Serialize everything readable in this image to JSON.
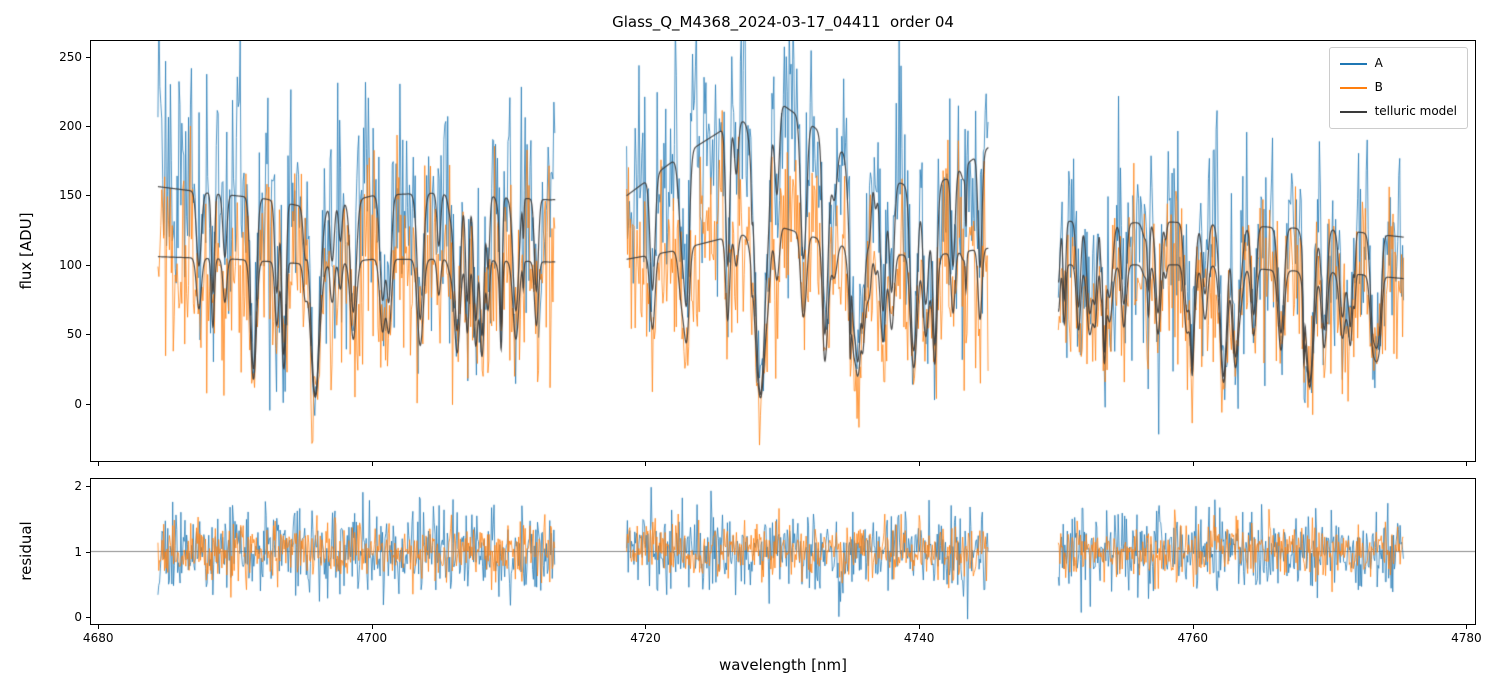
{
  "figure": {
    "title": "Glass_Q_M4368_2024-03-17_04411  order 04",
    "background": "#ffffff"
  },
  "axes": {
    "top": {
      "ylabel": "flux [ADU]",
      "yticks": [
        0,
        50,
        100,
        150,
        200,
        250
      ],
      "ylim": [
        -42,
        262
      ]
    },
    "bottom": {
      "ylabel": "residual",
      "yticks": [
        0,
        1,
        2
      ],
      "ylim": [
        -0.12,
        2.12
      ],
      "hline": 1.0,
      "hline_color": "#8a8a8a"
    },
    "x": {
      "label": "wavelength [nm]",
      "ticks": [
        4680,
        4700,
        4720,
        4740,
        4760,
        4780
      ],
      "lim": [
        4679.4,
        4780.7
      ]
    }
  },
  "legend": {
    "entries": [
      {
        "label": "A",
        "color": "#1f77b4"
      },
      {
        "label": "B",
        "color": "#ff7f0e"
      },
      {
        "label": "telluric model",
        "color": "#3a3a3a"
      }
    ]
  },
  "chart_data": {
    "type": "line",
    "title": "Glass_Q_M4368_2024-03-17_04411  order 04",
    "xlabel": "wavelength [nm]",
    "xlim": [
      4679.4,
      4780.7
    ],
    "xticks": [
      4680,
      4700,
      4720,
      4740,
      4760,
      4780
    ],
    "panels": [
      {
        "name": "flux",
        "ylabel": "flux [ADU]",
        "ylim": [
          -42,
          262
        ],
        "yticks": [
          0,
          50,
          100,
          150,
          200,
          250
        ]
      },
      {
        "name": "residual",
        "ylabel": "residual",
        "ylim": [
          -0.12,
          2.12
        ],
        "yticks": [
          0,
          1,
          2
        ],
        "hline": 1.0
      }
    ],
    "segments_nm": [
      [
        4684.3,
        4713.4
      ],
      [
        4718.6,
        4745.1
      ],
      [
        4750.2,
        4775.5
      ]
    ],
    "step_nm": 0.07,
    "model_step_nm": 0.02,
    "residual_step_nm": 0.06,
    "series": [
      {
        "name": "A",
        "color": "#1f77b4",
        "alpha": 0.85,
        "noise_sigma": 42,
        "residual_sigma": 0.32,
        "seed": 11,
        "residual_seed": 21,
        "continuum": [
          [
            4684,
            157
          ],
          [
            4688,
            152
          ],
          [
            4692,
            148
          ],
          [
            4696,
            140
          ],
          [
            4700,
            150
          ],
          [
            4704,
            152
          ],
          [
            4708,
            150
          ],
          [
            4713,
            147
          ],
          [
            4718.6,
            150
          ],
          [
            4722,
            175
          ],
          [
            4726,
            200
          ],
          [
            4730,
            216
          ],
          [
            4733,
            195
          ],
          [
            4736,
            168
          ],
          [
            4739,
            158
          ],
          [
            4742,
            162
          ],
          [
            4745.1,
            185
          ],
          [
            4750.2,
            132
          ],
          [
            4754,
            130
          ],
          [
            4758,
            131
          ],
          [
            4762,
            130
          ],
          [
            4766,
            127
          ],
          [
            4770,
            126
          ],
          [
            4775.5,
            120
          ]
        ]
      },
      {
        "name": "B",
        "color": "#ff7f0e",
        "alpha": 0.85,
        "noise_sigma": 35,
        "residual_sigma": 0.22,
        "seed": 12,
        "residual_seed": 22,
        "continuum": [
          [
            4684,
            106
          ],
          [
            4690,
            104
          ],
          [
            4696,
            100
          ],
          [
            4700,
            104
          ],
          [
            4706,
            104
          ],
          [
            4713,
            102
          ],
          [
            4718.6,
            104
          ],
          [
            4722,
            110
          ],
          [
            4726,
            120
          ],
          [
            4730,
            127
          ],
          [
            4734,
            115
          ],
          [
            4738,
            107
          ],
          [
            4742,
            108
          ],
          [
            4745.1,
            112
          ],
          [
            4750.2,
            100
          ],
          [
            4756,
            100
          ],
          [
            4762,
            100
          ],
          [
            4766,
            96
          ],
          [
            4770,
            95
          ],
          [
            4775.5,
            90
          ]
        ]
      }
    ],
    "telluric_model": {
      "label": "telluric model",
      "color": "#3a3a3a",
      "alpha": 0.9,
      "minor_lines_seed": 7,
      "minor_lines_count": 80,
      "strong_lines": [
        [
          4687.3,
          0.35,
          0.25
        ],
        [
          4689.2,
          0.3,
          0.2
        ],
        [
          4691.3,
          0.75,
          0.28
        ],
        [
          4693.0,
          0.45,
          0.2
        ],
        [
          4695.8,
          0.93,
          0.45
        ],
        [
          4698.6,
          0.55,
          0.3
        ],
        [
          4701.2,
          0.5,
          0.25
        ],
        [
          4703.5,
          0.6,
          0.3
        ],
        [
          4706.2,
          0.65,
          0.3
        ],
        [
          4708.0,
          0.5,
          0.25
        ],
        [
          4710.5,
          0.55,
          0.3
        ],
        [
          4712.0,
          0.45,
          0.2
        ],
        [
          4720.5,
          0.5,
          0.25
        ],
        [
          4723.0,
          0.45,
          0.25
        ],
        [
          4726.0,
          0.5,
          0.2
        ],
        [
          4728.4,
          0.97,
          0.55
        ],
        [
          4731.5,
          0.4,
          0.25
        ],
        [
          4733.2,
          0.55,
          0.3
        ],
        [
          4735.5,
          0.6,
          0.3
        ],
        [
          4738.0,
          0.5,
          0.25
        ],
        [
          4740.5,
          0.55,
          0.3
        ],
        [
          4742.5,
          0.4,
          0.2
        ],
        [
          4752.5,
          0.5,
          0.3
        ],
        [
          4755.0,
          0.45,
          0.25
        ],
        [
          4757.5,
          0.5,
          0.25
        ],
        [
          4760.0,
          0.55,
          0.3
        ],
        [
          4762.3,
          0.85,
          0.35
        ],
        [
          4764.5,
          0.5,
          0.25
        ],
        [
          4766.5,
          0.6,
          0.3
        ],
        [
          4768.6,
          0.88,
          0.4
        ],
        [
          4771.0,
          0.5,
          0.3
        ],
        [
          4773.5,
          0.55,
          0.3
        ]
      ]
    }
  }
}
